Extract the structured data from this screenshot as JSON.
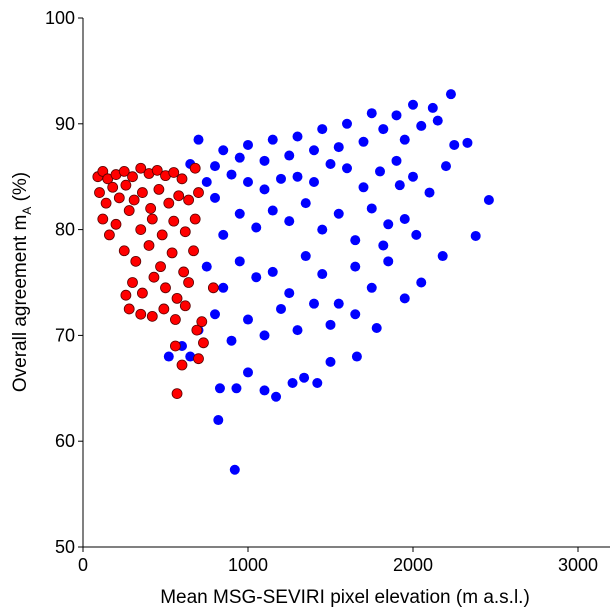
{
  "chart_data": {
    "type": "scatter",
    "xlabel": "Mean MSG-SEVIRI pixel elevation (m a.s.l.)",
    "ylabel": "Overall agreement m",
    "ylabel_sub": "A",
    "ylabel_end": " (%)",
    "xlim": [
      0,
      3200
    ],
    "ylim": [
      50,
      100
    ],
    "xticks": [
      0,
      1000,
      2000,
      3000
    ],
    "yticks": [
      50,
      60,
      70,
      80,
      90,
      100
    ],
    "series": [
      {
        "color": "#0000ff",
        "stroke": "none",
        "x": [
          2230,
          2000,
          2120,
          1750,
          1900,
          2150,
          1600,
          1820,
          2050,
          1450,
          1300,
          1150,
          1000,
          850,
          700,
          2330,
          2250,
          1950,
          1700,
          1550,
          1400,
          1250,
          1100,
          950,
          800,
          650,
          2460,
          2380,
          2180,
          2100,
          2000,
          1900,
          1800,
          1700,
          1600,
          1500,
          1400,
          1300,
          1200,
          1100,
          1000,
          900,
          800,
          750,
          1950,
          1850,
          1750,
          1650,
          1550,
          1450,
          1350,
          1250,
          1150,
          1050,
          950,
          850,
          2050,
          1950,
          1850,
          1750,
          1650,
          1550,
          1450,
          1350,
          1250,
          1150,
          1050,
          950,
          850,
          750,
          1780,
          1650,
          1500,
          1400,
          1300,
          1200,
          1100,
          1000,
          900,
          800,
          700,
          650,
          600,
          520,
          1660,
          1500,
          1340,
          1270,
          1100,
          1000,
          930,
          830,
          1420,
          1170,
          820,
          920,
          1820,
          1920,
          2200,
          2020
        ],
        "values": [
          92.8,
          91.8,
          91.5,
          91,
          90.8,
          90.3,
          90,
          89.5,
          89.8,
          89.5,
          88.8,
          88.5,
          88,
          87.5,
          88.5,
          88.2,
          88,
          88.5,
          88.3,
          87.8,
          87.5,
          87,
          86.5,
          86.8,
          86,
          86.2,
          82.8,
          79.4,
          77.5,
          83.5,
          85,
          86.5,
          85.5,
          84,
          85.8,
          86.2,
          84.5,
          85,
          84.8,
          83.8,
          84.5,
          85.2,
          83,
          84.5,
          81,
          80.5,
          82,
          79,
          81.5,
          80,
          82.5,
          80.8,
          81.8,
          80.2,
          81.5,
          79.5,
          75,
          73.5,
          77,
          74.5,
          76.5,
          73,
          75.8,
          77.5,
          74,
          76,
          75.5,
          77,
          74.5,
          76.5,
          70.7,
          72,
          71,
          73,
          70.5,
          72.5,
          70,
          71.5,
          69.5,
          72,
          70.5,
          68,
          69,
          68,
          68,
          67.5,
          66,
          65.5,
          64.8,
          66.5,
          65,
          65,
          65.5,
          64.2,
          62,
          57.3,
          78.5,
          84.2,
          86,
          79.5
        ]
      },
      {
        "color": "#ff0000",
        "stroke": "#5a0000",
        "x": [
          90,
          120,
          150,
          200,
          250,
          300,
          350,
          400,
          450,
          500,
          550,
          600,
          680,
          100,
          140,
          180,
          220,
          260,
          310,
          360,
          410,
          460,
          520,
          580,
          640,
          700,
          120,
          200,
          280,
          350,
          420,
          480,
          550,
          620,
          680,
          250,
          320,
          400,
          470,
          540,
          610,
          670,
          300,
          360,
          430,
          500,
          570,
          640,
          280,
          350,
          420,
          490,
          560,
          620,
          690,
          720,
          730,
          700,
          560,
          600,
          570,
          790,
          260,
          160
        ],
        "values": [
          85,
          85.5,
          84.8,
          85.2,
          85.5,
          85,
          85.8,
          85.3,
          85.6,
          85.1,
          85.4,
          84.8,
          85.8,
          83.5,
          82.5,
          84,
          83,
          84.2,
          82.8,
          83.5,
          82,
          83.8,
          82.5,
          83.2,
          82.8,
          83.5,
          81,
          80.5,
          81.8,
          80,
          81,
          79.5,
          80.8,
          79.8,
          81,
          78,
          77,
          78.5,
          76.5,
          77.8,
          76,
          78,
          75,
          74,
          75.5,
          74.5,
          73.5,
          75,
          72.5,
          72,
          71.8,
          72.5,
          71.5,
          72.8,
          70.5,
          71.3,
          69.3,
          67.8,
          69,
          67.2,
          64.5,
          74.5,
          73.8,
          79.5
        ]
      }
    ]
  }
}
